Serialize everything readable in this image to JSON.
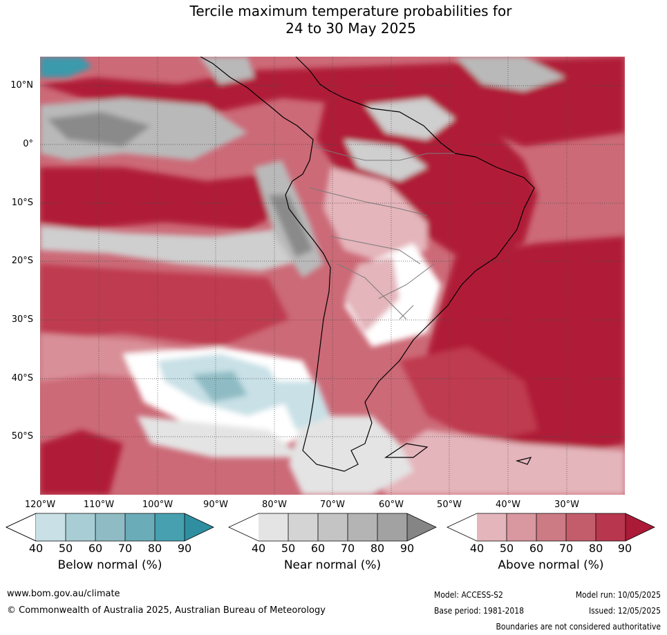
{
  "title_line1": "Tercile maximum temperature probabilities for",
  "title_line2": "24 to 30 May 2025",
  "map": {
    "lat_labels": [
      "10°N",
      "0°",
      "10°S",
      "20°S",
      "30°S",
      "40°S",
      "50°S"
    ],
    "lon_labels": [
      "120°W",
      "110°W",
      "100°W",
      "90°W",
      "80°W",
      "70°W",
      "60°W",
      "50°W",
      "40°W",
      "30°W"
    ],
    "colors": {
      "above_90": "#b01c38",
      "above_80": "#bf3a4f",
      "above_70": "#cc6a77",
      "above_60": "#d98f98",
      "above_50": "#e4b5bb",
      "near_50": "#e4e4e4",
      "near_60": "#cfcfcf",
      "near_70": "#b9b9b9",
      "near_90": "#8a8a8a",
      "below_50": "#c8e0e6",
      "below_70": "#8fbcc4",
      "below_90": "#3a9aab"
    }
  },
  "legends": [
    {
      "label": "Below normal (%)",
      "ticks": [
        "40",
        "50",
        "60",
        "70",
        "80",
        "90"
      ],
      "colors": [
        "#ffffff",
        "#c8e0e6",
        "#a8cdd4",
        "#8fbcc4",
        "#6aacb8",
        "#47a0b0",
        "#2f8fa1"
      ]
    },
    {
      "label": "Near normal (%)",
      "ticks": [
        "40",
        "50",
        "60",
        "70",
        "80",
        "90"
      ],
      "colors": [
        "#ffffff",
        "#e4e4e4",
        "#d4d4d4",
        "#c4c4c4",
        "#b4b4b4",
        "#a2a2a2",
        "#858585"
      ]
    },
    {
      "label": "Above normal (%)",
      "ticks": [
        "40",
        "50",
        "60",
        "70",
        "80",
        "90"
      ],
      "colors": [
        "#ffffff",
        "#e4b5bb",
        "#d9979f",
        "#cc7a84",
        "#c45d6b",
        "#b8374e",
        "#ab1a37"
      ]
    }
  ],
  "footer": {
    "url": "www.bom.gov.au/climate",
    "copyright": "© Commonwealth of Australia 2025, Australian Bureau of Meteorology",
    "model": "Model: ACCESS-S2",
    "model_run": "Model run: 10/05/2025",
    "base_period": "Base period: 1981-2018",
    "issued": "Issued: 12/05/2025",
    "disclaimer": "Boundaries are not considered authoritative"
  }
}
